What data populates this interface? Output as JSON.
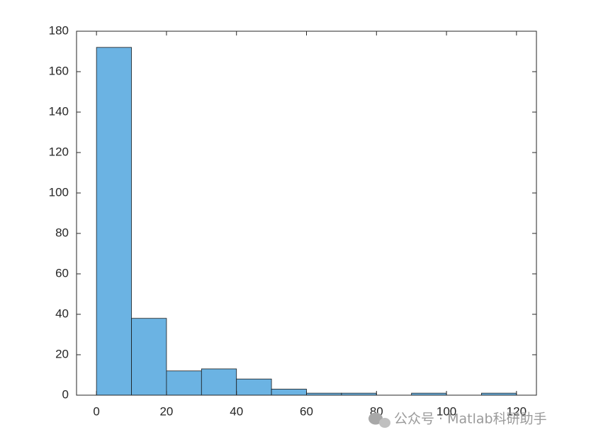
{
  "chart_data": {
    "type": "histogram",
    "bins": [
      0,
      10,
      20,
      30,
      40,
      50,
      60,
      70,
      80,
      90,
      100,
      110,
      120
    ],
    "values": [
      172,
      38,
      12,
      13,
      8,
      3,
      1,
      1,
      0,
      1,
      0,
      1
    ],
    "color": "#6bb3e3",
    "xlim": [
      -5.7,
      125.7
    ],
    "xticks": [
      0,
      20,
      40,
      60,
      80,
      100,
      120
    ],
    "ylim": [
      0,
      180
    ],
    "yticks": [
      0,
      20,
      40,
      60,
      80,
      100,
      120,
      140,
      160,
      180
    ],
    "box": true,
    "watermark": "公众号 · Matlab科研助手"
  }
}
